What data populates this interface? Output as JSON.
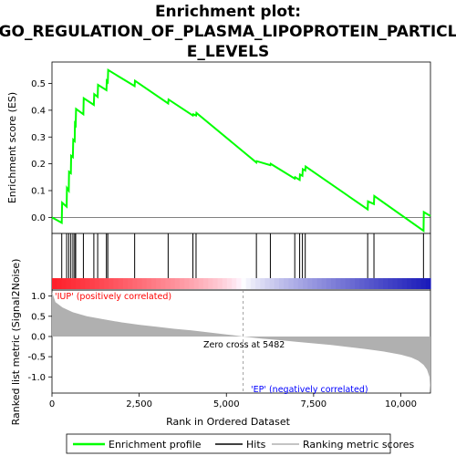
{
  "chart_data": {
    "type": "line",
    "title_line1": "Enrichment plot:",
    "title_line2": "GO_REGULATION_OF_PLASMA_LIPOPROTEIN_PARTICL",
    "title_line3": "E_LEVELS",
    "top_panel": {
      "ylabel": "Enrichment score (ES)",
      "ylim": [
        -0.06,
        0.58
      ],
      "yticks": [
        0.0,
        0.1,
        0.2,
        0.3,
        0.4,
        0.5
      ],
      "ytick_labels": [
        "0.0",
        "0.1",
        "0.2",
        "0.3",
        "0.4",
        "0.5"
      ],
      "series": [
        {
          "name": "Enrichment profile",
          "color": "#00ff00",
          "x": [
            0,
            280,
            290,
            420,
            430,
            480,
            490,
            540,
            550,
            600,
            610,
            650,
            660,
            680,
            690,
            900,
            910,
            1200,
            1210,
            1310,
            1320,
            1560,
            1570,
            1600,
            1610,
            2370,
            2380,
            3330,
            3340,
            4040,
            4050,
            4130,
            4140,
            5860,
            5870,
            6260,
            6270,
            6960,
            6970,
            7100,
            7110,
            7180,
            7190,
            7260,
            7270,
            9050,
            9060,
            9230,
            9240,
            10650,
            10660,
            10850
          ],
          "y": [
            0.0,
            -0.02,
            0.055,
            0.04,
            0.11,
            0.1,
            0.17,
            0.165,
            0.23,
            0.225,
            0.29,
            0.285,
            0.35,
            0.345,
            0.405,
            0.385,
            0.445,
            0.42,
            0.46,
            0.45,
            0.495,
            0.475,
            0.51,
            0.505,
            0.55,
            0.49,
            0.51,
            0.425,
            0.44,
            0.38,
            0.385,
            0.38,
            0.39,
            0.205,
            0.21,
            0.195,
            0.2,
            0.145,
            0.15,
            0.14,
            0.16,
            0.155,
            0.18,
            0.175,
            0.19,
            0.03,
            0.06,
            0.05,
            0.08,
            -0.05,
            0.02,
            0.005
          ]
        }
      ]
    },
    "hits_panel": {
      "legend_name": "Hits",
      "hit_positions": [
        280,
        420,
        480,
        540,
        600,
        650,
        680,
        900,
        1200,
        1310,
        1560,
        1600,
        2370,
        3330,
        4040,
        4130,
        5860,
        6260,
        6960,
        7100,
        7180,
        7260,
        9050,
        9230,
        10650
      ]
    },
    "ranking_panel": {
      "ylabel": "Ranked list metric (Signal2Noise)",
      "legend_name": "Ranking metric scores",
      "ylim": [
        -1.4,
        1.15
      ],
      "yticks": [
        1.0,
        0.5,
        0.0,
        -0.5,
        -1.0
      ],
      "ytick_labels": [
        "1.0",
        "0.5",
        "0.0",
        "-0.5",
        "-1.0"
      ],
      "x": [
        0,
        100,
        300,
        600,
        1000,
        1500,
        2000,
        2500,
        3000,
        3500,
        4000,
        4500,
        5000,
        5482,
        6000,
        6500,
        7000,
        7500,
        8000,
        8500,
        9000,
        9500,
        10000,
        10300,
        10500,
        10650,
        10750,
        10820,
        10850
      ],
      "values": [
        1.1,
        0.85,
        0.72,
        0.6,
        0.5,
        0.42,
        0.35,
        0.29,
        0.24,
        0.19,
        0.15,
        0.1,
        0.05,
        0.0,
        -0.05,
        -0.09,
        -0.13,
        -0.17,
        -0.21,
        -0.26,
        -0.31,
        -0.37,
        -0.45,
        -0.52,
        -0.6,
        -0.7,
        -0.82,
        -1.0,
        -1.38
      ],
      "label_pos": "'IUP' (positively correlated)",
      "label_neg": "'EP' (negatively correlated)",
      "zero_cross_label": "Zero cross at 5482",
      "zero_cross": 5482
    },
    "x_axis": {
      "xlabel": "Rank in Ordered Dataset",
      "xlim": [
        0,
        10850
      ],
      "xticks": [
        0,
        2500,
        5000,
        7500,
        10000
      ],
      "xtick_labels": [
        "0",
        "2,500",
        "5,000",
        "7,500",
        "10,000"
      ]
    },
    "legend": {
      "items": [
        "Enrichment profile",
        "Hits",
        "Ranking metric scores"
      ],
      "placement": "bottom"
    },
    "colors": {
      "profile": "#00ff00",
      "pos_label": "#ff0000",
      "neg_label": "#0000ff",
      "metric_fill": "#b0b0b0"
    }
  }
}
